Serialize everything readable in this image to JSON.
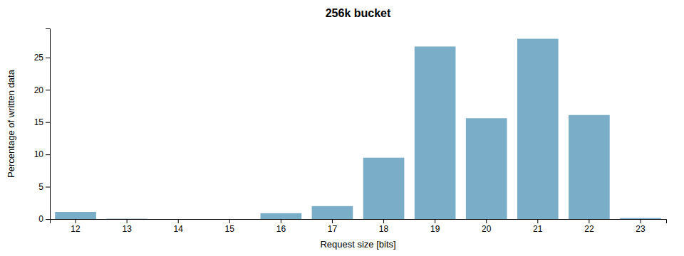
{
  "chart_data": {
    "type": "bar",
    "title": "256k bucket",
    "xlabel": "Request size [bits]",
    "ylabel": "Percentage of written data",
    "categories": [
      12,
      13,
      14,
      15,
      16,
      17,
      18,
      19,
      20,
      21,
      22,
      23
    ],
    "values": [
      1.1,
      0.05,
      0.0,
      0.0,
      0.9,
      2.0,
      9.5,
      26.7,
      15.6,
      27.9,
      16.1,
      0.15
    ],
    "color": "#7aaec8",
    "ylim": [
      0,
      29.5
    ],
    "yticks": [
      0,
      5,
      10,
      15,
      20,
      25
    ]
  }
}
